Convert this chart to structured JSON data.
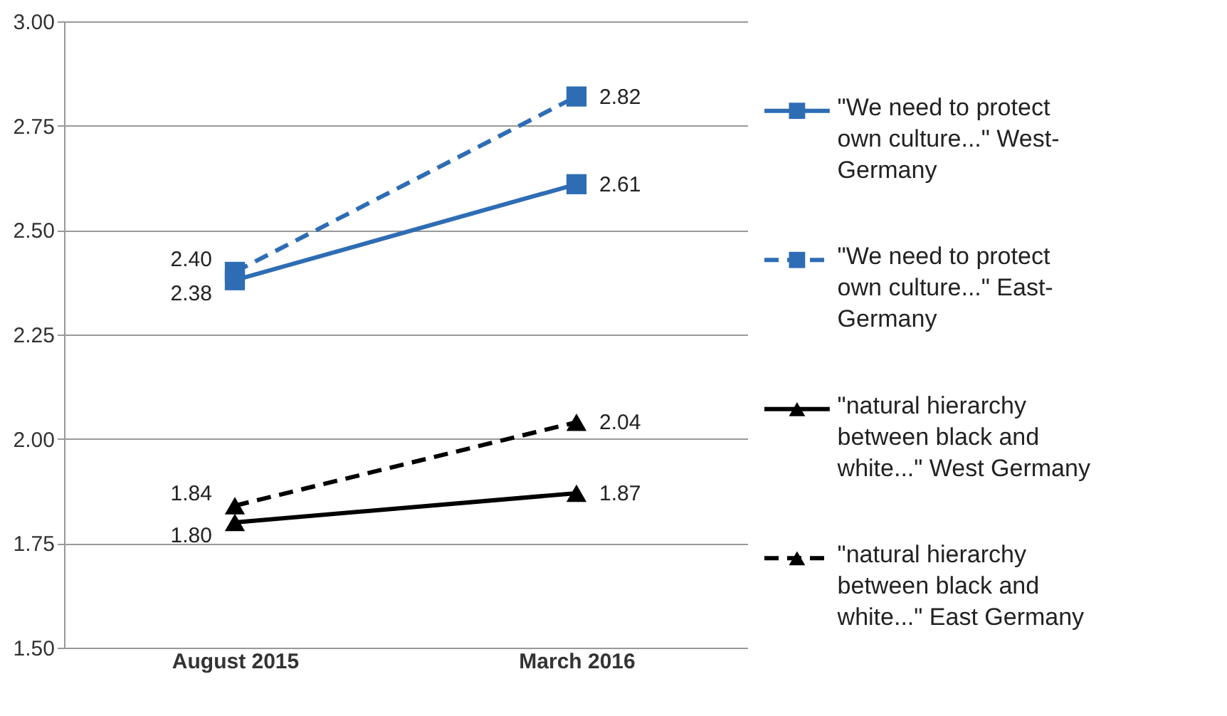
{
  "chart_data": {
    "type": "line",
    "categories": [
      "August 2015",
      "March 2016"
    ],
    "series": [
      {
        "name": "\"We need to protect own culture...\" West-Germany",
        "color": "#2e6db4",
        "values": [
          2.38,
          2.61
        ],
        "value_labels": [
          "2.38",
          "2.61"
        ],
        "marker": "square",
        "line_style": "solid"
      },
      {
        "name": "\"We need to protect own culture...\" East-Germany",
        "color": "#2e6db4",
        "values": [
          2.4,
          2.82
        ],
        "value_labels": [
          "2.40",
          "2.82"
        ],
        "marker": "square",
        "line_style": "dashed"
      },
      {
        "name": "\"natural hierarchy between black and white...\" West Germany",
        "color": "#000000",
        "values": [
          1.8,
          1.87
        ],
        "value_labels": [
          "1.80",
          "1.87"
        ],
        "marker": "triangle",
        "line_style": "solid"
      },
      {
        "name": "\"natural hierarchy between black and white...\" East Germany",
        "color": "#000000",
        "values": [
          1.84,
          2.04
        ],
        "value_labels": [
          "1.84",
          "2.04"
        ],
        "marker": "triangle",
        "line_style": "dashed"
      }
    ],
    "ylim": [
      1.5,
      3.0
    ],
    "yticks": [
      {
        "value": 1.5,
        "label": "1.50"
      },
      {
        "value": 1.75,
        "label": "1.75"
      },
      {
        "value": 2.0,
        "label": "2.00"
      },
      {
        "value": 2.25,
        "label": "2.25"
      },
      {
        "value": 2.5,
        "label": "2.50"
      },
      {
        "value": 2.75,
        "label": "2.75"
      },
      {
        "value": 3.0,
        "label": "3.00"
      }
    ],
    "grid": "y",
    "legend": "right"
  }
}
